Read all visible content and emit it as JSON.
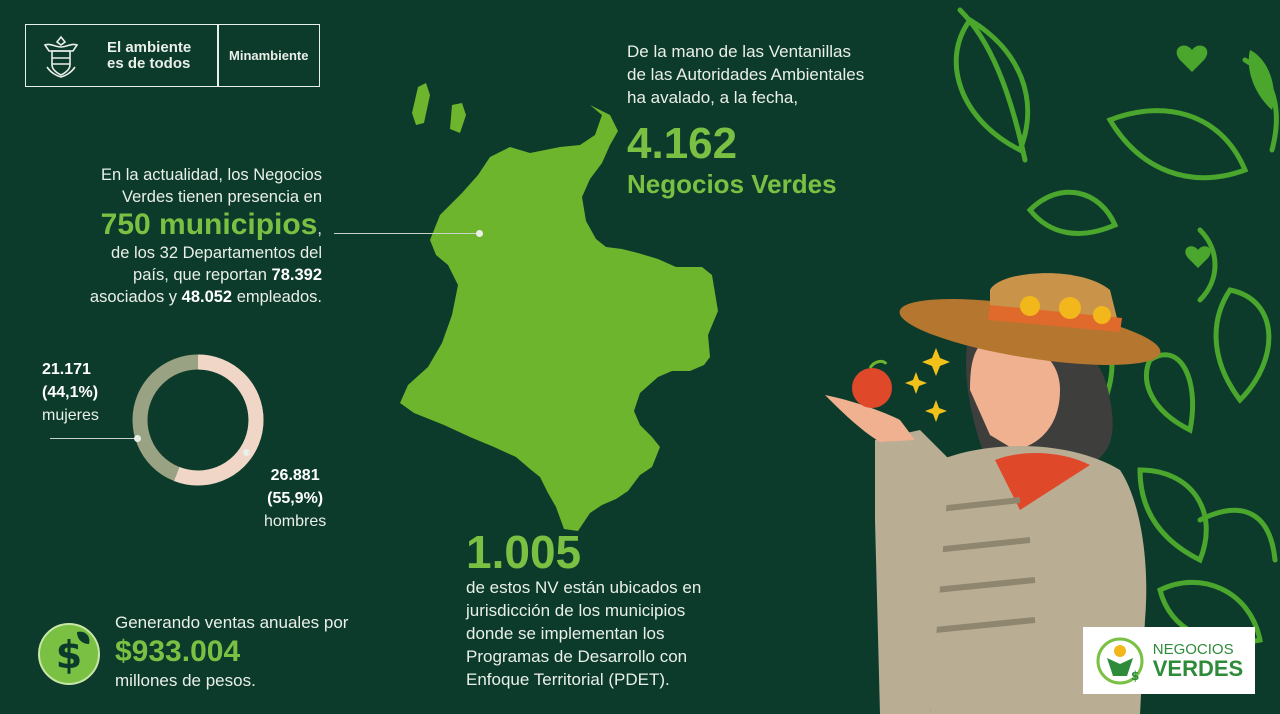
{
  "header": {
    "slogan_line1": "El ambiente",
    "slogan_line2": "es de todos",
    "ministry": "Minambiente"
  },
  "presence": {
    "line1": "En la actualidad, los Negocios",
    "line2": "Verdes tienen presencia en",
    "municipios": "750 municipios",
    "comma": ",",
    "line3": "de los 32 Departamentos del",
    "line4a": "país, que reportan ",
    "asociados": "78.392",
    "line5a": "asociados y ",
    "empleados": "48.052",
    "line5b": " empleados."
  },
  "gender": {
    "women_count": "21.171",
    "women_pct": "(44,1%)",
    "women_label": "mujeres",
    "women_share": 0.441,
    "men_count": "26.881",
    "men_pct": "(55,9%)",
    "men_label": "hombres",
    "men_share": 0.559,
    "women_color": "#9aa284",
    "men_color": "#efd6c6"
  },
  "sales": {
    "line1": "Generando ventas anuales por",
    "amount": "$933.004",
    "line2": "millones de pesos.",
    "icon": "money-dollar-icon"
  },
  "avalado": {
    "line1": "De la mano de las Ventanillas",
    "line2": "de las Autoridades Ambientales",
    "line3": "ha avalado, a la fecha,",
    "number": "4.162",
    "label": "Negocios Verdes"
  },
  "pdet": {
    "number": "1.005",
    "line1": "de estos NV están ubicados en",
    "line2": "jurisdicción de los municipios",
    "line3": "donde se implementan los",
    "line4": "Programas de Desarrollo con",
    "line5": "Enfoque Territorial (PDET)."
  },
  "nv_logo": {
    "line1": "NEGOCIOS",
    "line2": "VERDES"
  },
  "colors": {
    "background": "#0d3b2b",
    "accent_green": "#7ac143",
    "map_green": "#6cb52d"
  }
}
